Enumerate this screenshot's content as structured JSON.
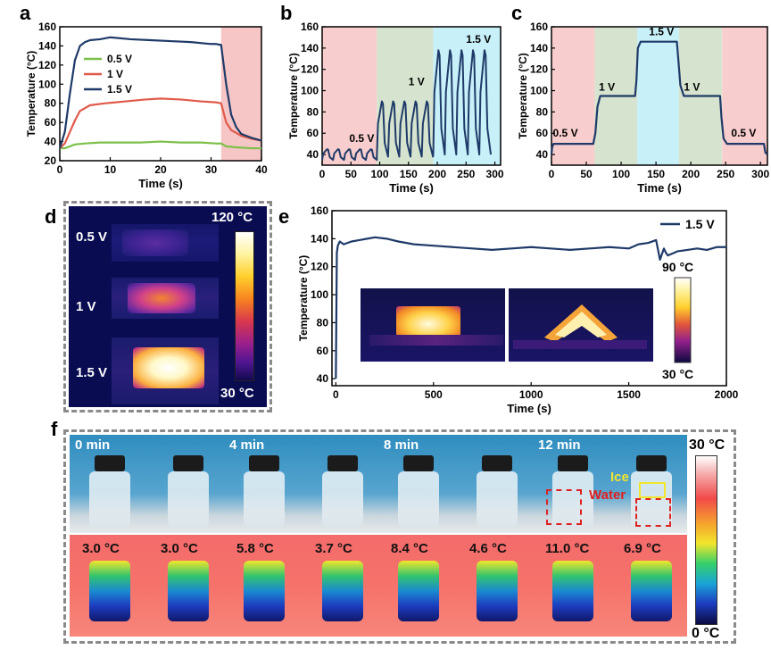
{
  "panels": {
    "a": "a",
    "b": "b",
    "c": "c",
    "d": "d",
    "e": "e",
    "f": "f"
  },
  "chart_data": [
    {
      "id": "a",
      "type": "line",
      "xlabel": "Time (s)",
      "ylabel": "Temperature (°C)",
      "xlim": [
        0,
        40
      ],
      "ylim": [
        20,
        160
      ],
      "xticks": [
        0,
        10,
        20,
        30,
        40
      ],
      "yticks": [
        20,
        40,
        60,
        80,
        100,
        120,
        140,
        160
      ],
      "legend": [
        "0.5 V",
        "1 V",
        "1.5 V"
      ],
      "legend_position": "center-left",
      "shaded": [
        {
          "from": 32,
          "to": 40,
          "color": "#f6c6c6"
        }
      ],
      "series": [
        {
          "name": "0.5 V",
          "color": "#7dc04a",
          "x": [
            0,
            1,
            2,
            3,
            5,
            8,
            12,
            16,
            20,
            24,
            28,
            31,
            32,
            33,
            35,
            38,
            40
          ],
          "y": [
            33,
            33,
            35,
            37,
            38,
            39,
            39,
            39,
            40,
            39,
            39,
            38,
            38,
            35,
            34,
            33,
            33
          ]
        },
        {
          "name": "1 V",
          "color": "#e05a4a",
          "x": [
            0,
            1,
            2,
            3,
            4,
            6,
            9,
            13,
            17,
            20,
            24,
            28,
            31,
            32,
            33,
            34,
            36,
            38,
            40
          ],
          "y": [
            33,
            38,
            50,
            62,
            72,
            78,
            80,
            82,
            84,
            85,
            84,
            82,
            81,
            80,
            60,
            52,
            46,
            43,
            41
          ]
        },
        {
          "name": "1.5 V",
          "color": "#1f3a68",
          "x": [
            0,
            1,
            2,
            3,
            4,
            5,
            6,
            8,
            10,
            14,
            18,
            22,
            26,
            30,
            31,
            32,
            33,
            34,
            35,
            36,
            38,
            40
          ],
          "y": [
            33,
            50,
            90,
            125,
            140,
            144,
            146,
            147,
            149,
            147,
            146,
            145,
            144,
            142,
            142,
            141,
            100,
            68,
            55,
            48,
            44,
            41
          ]
        }
      ]
    },
    {
      "id": "b",
      "type": "line",
      "xlabel": "Time (s)",
      "ylabel": "Temperature (°C)",
      "xlim": [
        0,
        310
      ],
      "ylim": [
        30,
        160
      ],
      "xticks": [
        0,
        50,
        100,
        150,
        200,
        250,
        300
      ],
      "yticks": [
        40,
        60,
        80,
        100,
        120,
        140,
        160
      ],
      "shaded": [
        {
          "from": 0,
          "to": 95,
          "color": "#f8cdcd"
        },
        {
          "from": 95,
          "to": 193,
          "color": "#d6e4cf"
        },
        {
          "from": 193,
          "to": 310,
          "color": "#c7f0f8"
        }
      ],
      "annotations": [
        {
          "text": "0.5 V",
          "x": 47,
          "y": 52
        },
        {
          "text": "1 V",
          "x": 150,
          "y": 105
        },
        {
          "text": "1.5 V",
          "x": 250,
          "y": 145
        }
      ],
      "cycle_peaks": [
        {
          "voltage": "0.5 V",
          "start": 0,
          "period": 19,
          "cycles": 5,
          "low": 35,
          "high": 45
        },
        {
          "voltage": "1 V",
          "start": 95,
          "period": 19.5,
          "cycles": 5,
          "low": 38,
          "high": 90
        },
        {
          "voltage": "1.5 V",
          "start": 193,
          "period": 20,
          "cycles": 5,
          "low": 40,
          "high": 138
        }
      ]
    },
    {
      "id": "c",
      "type": "line",
      "xlabel": "Time (s)",
      "ylabel": "Temperature (°C)",
      "xlim": [
        0,
        310
      ],
      "ylim": [
        30,
        160
      ],
      "xticks": [
        0,
        50,
        100,
        150,
        200,
        250,
        300
      ],
      "yticks": [
        40,
        60,
        80,
        100,
        120,
        140,
        160
      ],
      "shaded": [
        {
          "from": 0,
          "to": 62,
          "color": "#f8cdcd"
        },
        {
          "from": 62,
          "to": 123,
          "color": "#d6e4cf"
        },
        {
          "from": 123,
          "to": 183,
          "color": "#c7f0f8"
        },
        {
          "from": 183,
          "to": 245,
          "color": "#d6e4cf"
        },
        {
          "from": 245,
          "to": 310,
          "color": "#f8cdcd"
        }
      ],
      "annotations": [
        {
          "text": "0.5 V",
          "x": 2,
          "y": 57
        },
        {
          "text": "1 V",
          "x": 68,
          "y": 100
        },
        {
          "text": "1.5 V",
          "x": 140,
          "y": 152
        },
        {
          "text": "1 V",
          "x": 190,
          "y": 100
        },
        {
          "text": "0.5 V",
          "x": 258,
          "y": 57
        }
      ],
      "series": [
        {
          "name": "step",
          "color": "#1f3a68",
          "x": [
            0,
            1,
            3,
            60,
            63,
            66,
            70,
            120,
            122,
            124,
            128,
            180,
            182,
            185,
            190,
            242,
            244,
            247,
            252,
            305,
            307,
            310
          ],
          "y": [
            40,
            47,
            50,
            50,
            60,
            85,
            95,
            95,
            110,
            140,
            146,
            146,
            130,
            105,
            95,
            95,
            75,
            55,
            50,
            50,
            42,
            40
          ]
        }
      ]
    },
    {
      "id": "e",
      "type": "line",
      "xlabel": "Time (s)",
      "ylabel": "Temperature (°C)",
      "xlim": [
        -20,
        2000
      ],
      "ylim": [
        35,
        160
      ],
      "xticks": [
        0,
        500,
        1000,
        1500,
        2000
      ],
      "yticks": [
        40,
        60,
        80,
        100,
        120,
        140,
        160
      ],
      "legend": [
        "1.5 V"
      ],
      "legend_position": "top-right",
      "series": [
        {
          "name": "1.5 V",
          "color": "#1f3a68",
          "x": [
            0,
            5,
            10,
            20,
            40,
            80,
            120,
            160,
            200,
            260,
            320,
            400,
            500,
            600,
            700,
            800,
            900,
            1000,
            1100,
            1200,
            1300,
            1400,
            1500,
            1550,
            1600,
            1640,
            1660,
            1680,
            1690,
            1700,
            1750,
            1800,
            1850,
            1900,
            1950,
            2000
          ],
          "y": [
            40,
            130,
            135,
            138,
            136,
            138,
            139,
            140,
            141,
            140,
            138,
            136,
            135,
            134,
            133,
            132,
            133,
            134,
            133,
            132,
            133,
            134,
            133,
            136,
            137,
            139,
            125,
            133,
            130,
            128,
            131,
            132,
            133,
            132,
            134,
            134
          ]
        }
      ],
      "colorbar": {
        "max": "90 °C",
        "min": "30 °C"
      }
    }
  ],
  "panel_d": {
    "labels": [
      "0.5 V",
      "1 V",
      "1.5 V"
    ],
    "colorbar_max": "120 °C",
    "colorbar_min": "30 °C"
  },
  "panel_f": {
    "times": [
      "0 min",
      "4 min",
      "8 min",
      "12 min"
    ],
    "temps": [
      [
        "3.0 °C",
        "3.0 °C"
      ],
      [
        "5.8 °C",
        "3.7 °C"
      ],
      [
        "8.4 °C",
        "4.6 °C"
      ],
      [
        "11.0 °C",
        "6.9 °C"
      ]
    ],
    "ice_label": "Ice",
    "water_label": "Water",
    "colorbar_max": "30 °C",
    "colorbar_min": "0 °C"
  }
}
